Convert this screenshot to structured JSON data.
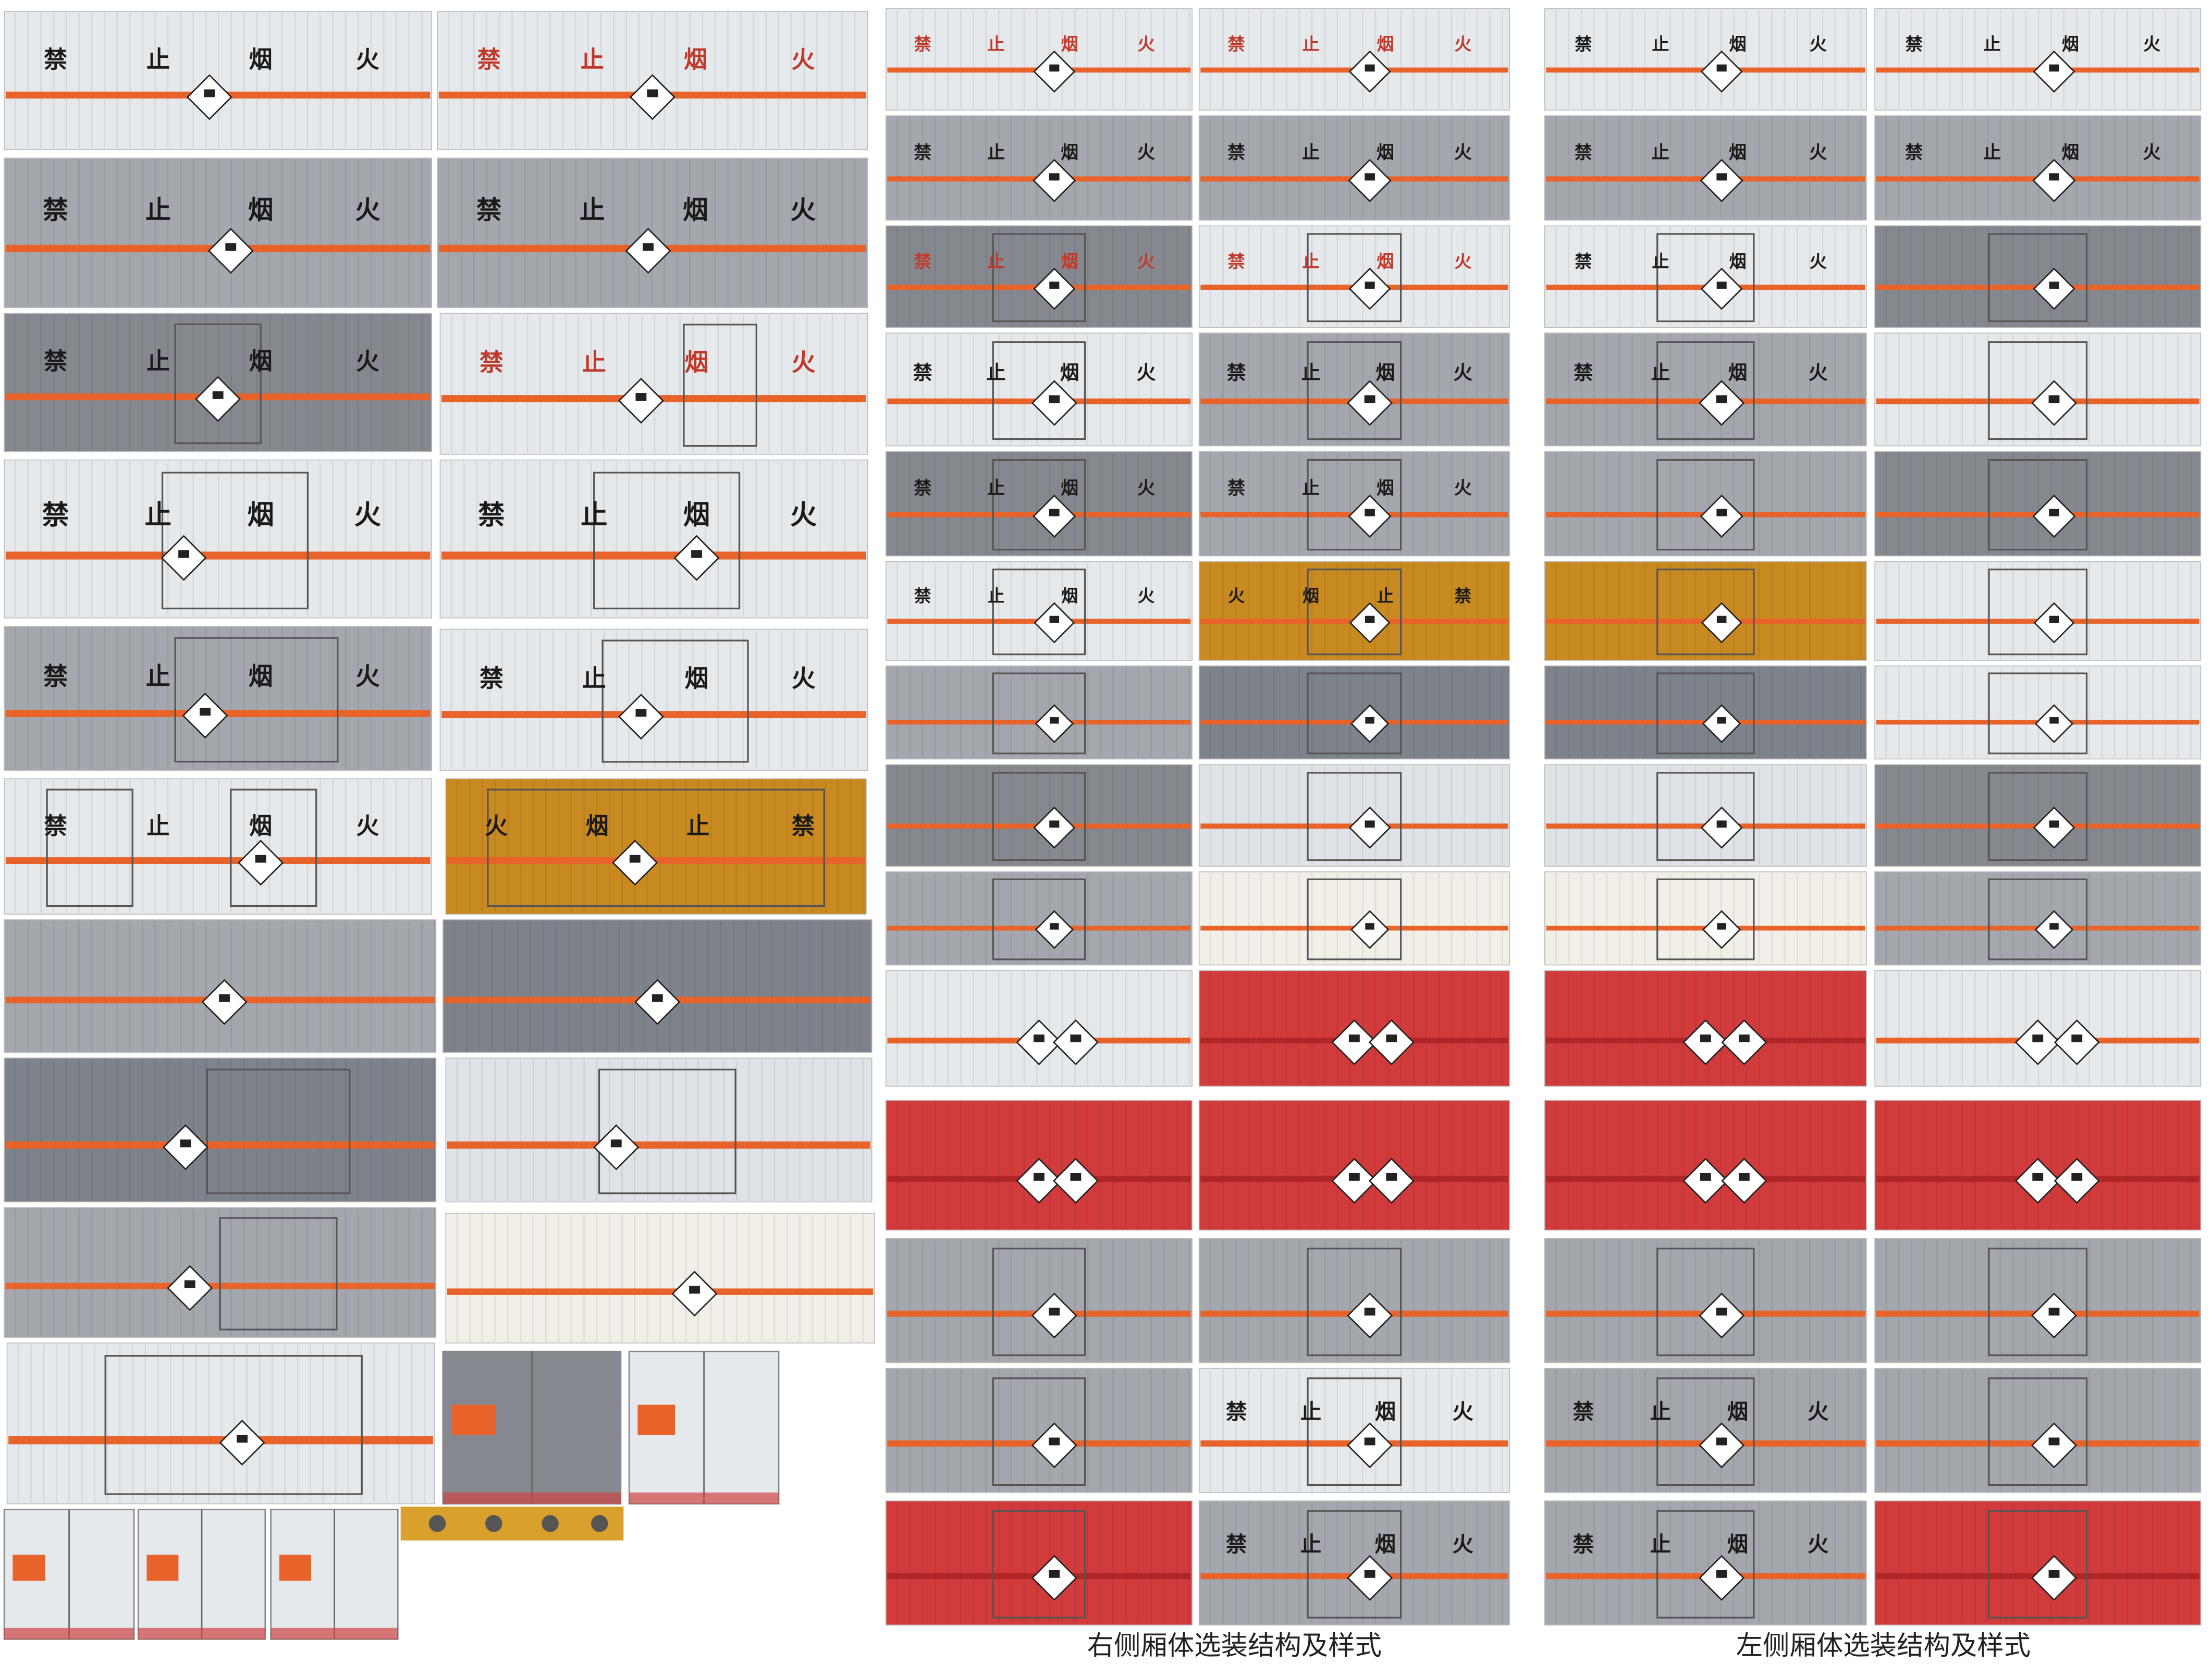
{
  "signs": [
    [
      "禁",
      "止",
      "烟",
      "火"
    ],
    [
      "禁",
      "止",
      "烟",
      "火"
    ],
    [
      "禁",
      "止",
      "烟",
      "火"
    ],
    [
      "禁",
      "止",
      "烟",
      "火"
    ],
    [
      "禁",
      "止",
      "烟",
      "火"
    ],
    [
      "禁",
      "止",
      "烟",
      "火"
    ],
    [
      "禁",
      "止",
      "烟",
      "火"
    ],
    [
      "禁",
      "止",
      "烟",
      "火"
    ],
    [
      "禁",
      "止",
      "烟",
      "火"
    ],
    [
      "禁",
      "止",
      "烟",
      "火"
    ],
    [
      "禁",
      "止",
      "烟",
      "火"
    ],
    [
      "火",
      "烟",
      "止",
      "禁"
    ],
    [
      "禁",
      "止",
      "烟",
      "火"
    ],
    [
      "禁",
      "止",
      "烟",
      "火"
    ],
    [
      "禁",
      "止",
      "烟",
      "火"
    ],
    [
      "禁",
      "止",
      "烟",
      "火"
    ],
    [
      "禁",
      "止",
      "烟",
      "火"
    ],
    [
      "禁",
      "止",
      "烟",
      "火"
    ],
    [
      "禁",
      "止",
      "烟",
      "火"
    ],
    [
      "禁",
      "止",
      "烟",
      "火"
    ],
    [
      "禁",
      "止",
      "烟",
      "火"
    ],
    [
      "禁",
      "止",
      "烟",
      "火"
    ],
    [
      "禁",
      "止",
      "烟",
      "火"
    ],
    [
      "火",
      "烟",
      "止",
      "禁"
    ],
    [
      "禁",
      "止",
      "烟",
      "火"
    ],
    [
      "禁",
      "止",
      "烟",
      "火"
    ],
    [
      "禁",
      "止",
      "烟",
      "火"
    ],
    [
      "禁",
      "止",
      "烟",
      "火"
    ],
    [
      "禁",
      "止",
      "烟",
      "火"
    ],
    [
      "禁",
      "止",
      "烟",
      "火"
    ],
    [
      "禁",
      "止",
      "烟",
      "火"
    ],
    [
      "禁",
      "止",
      "烟",
      "火"
    ],
    [
      "禁",
      "止",
      "烟",
      "火"
    ],
    [
      "禁",
      "止",
      "烟",
      "火"
    ]
  ],
  "captions": [
    "右侧厢体选装结构及样式",
    "左侧厢体选装结构及样式"
  ]
}
